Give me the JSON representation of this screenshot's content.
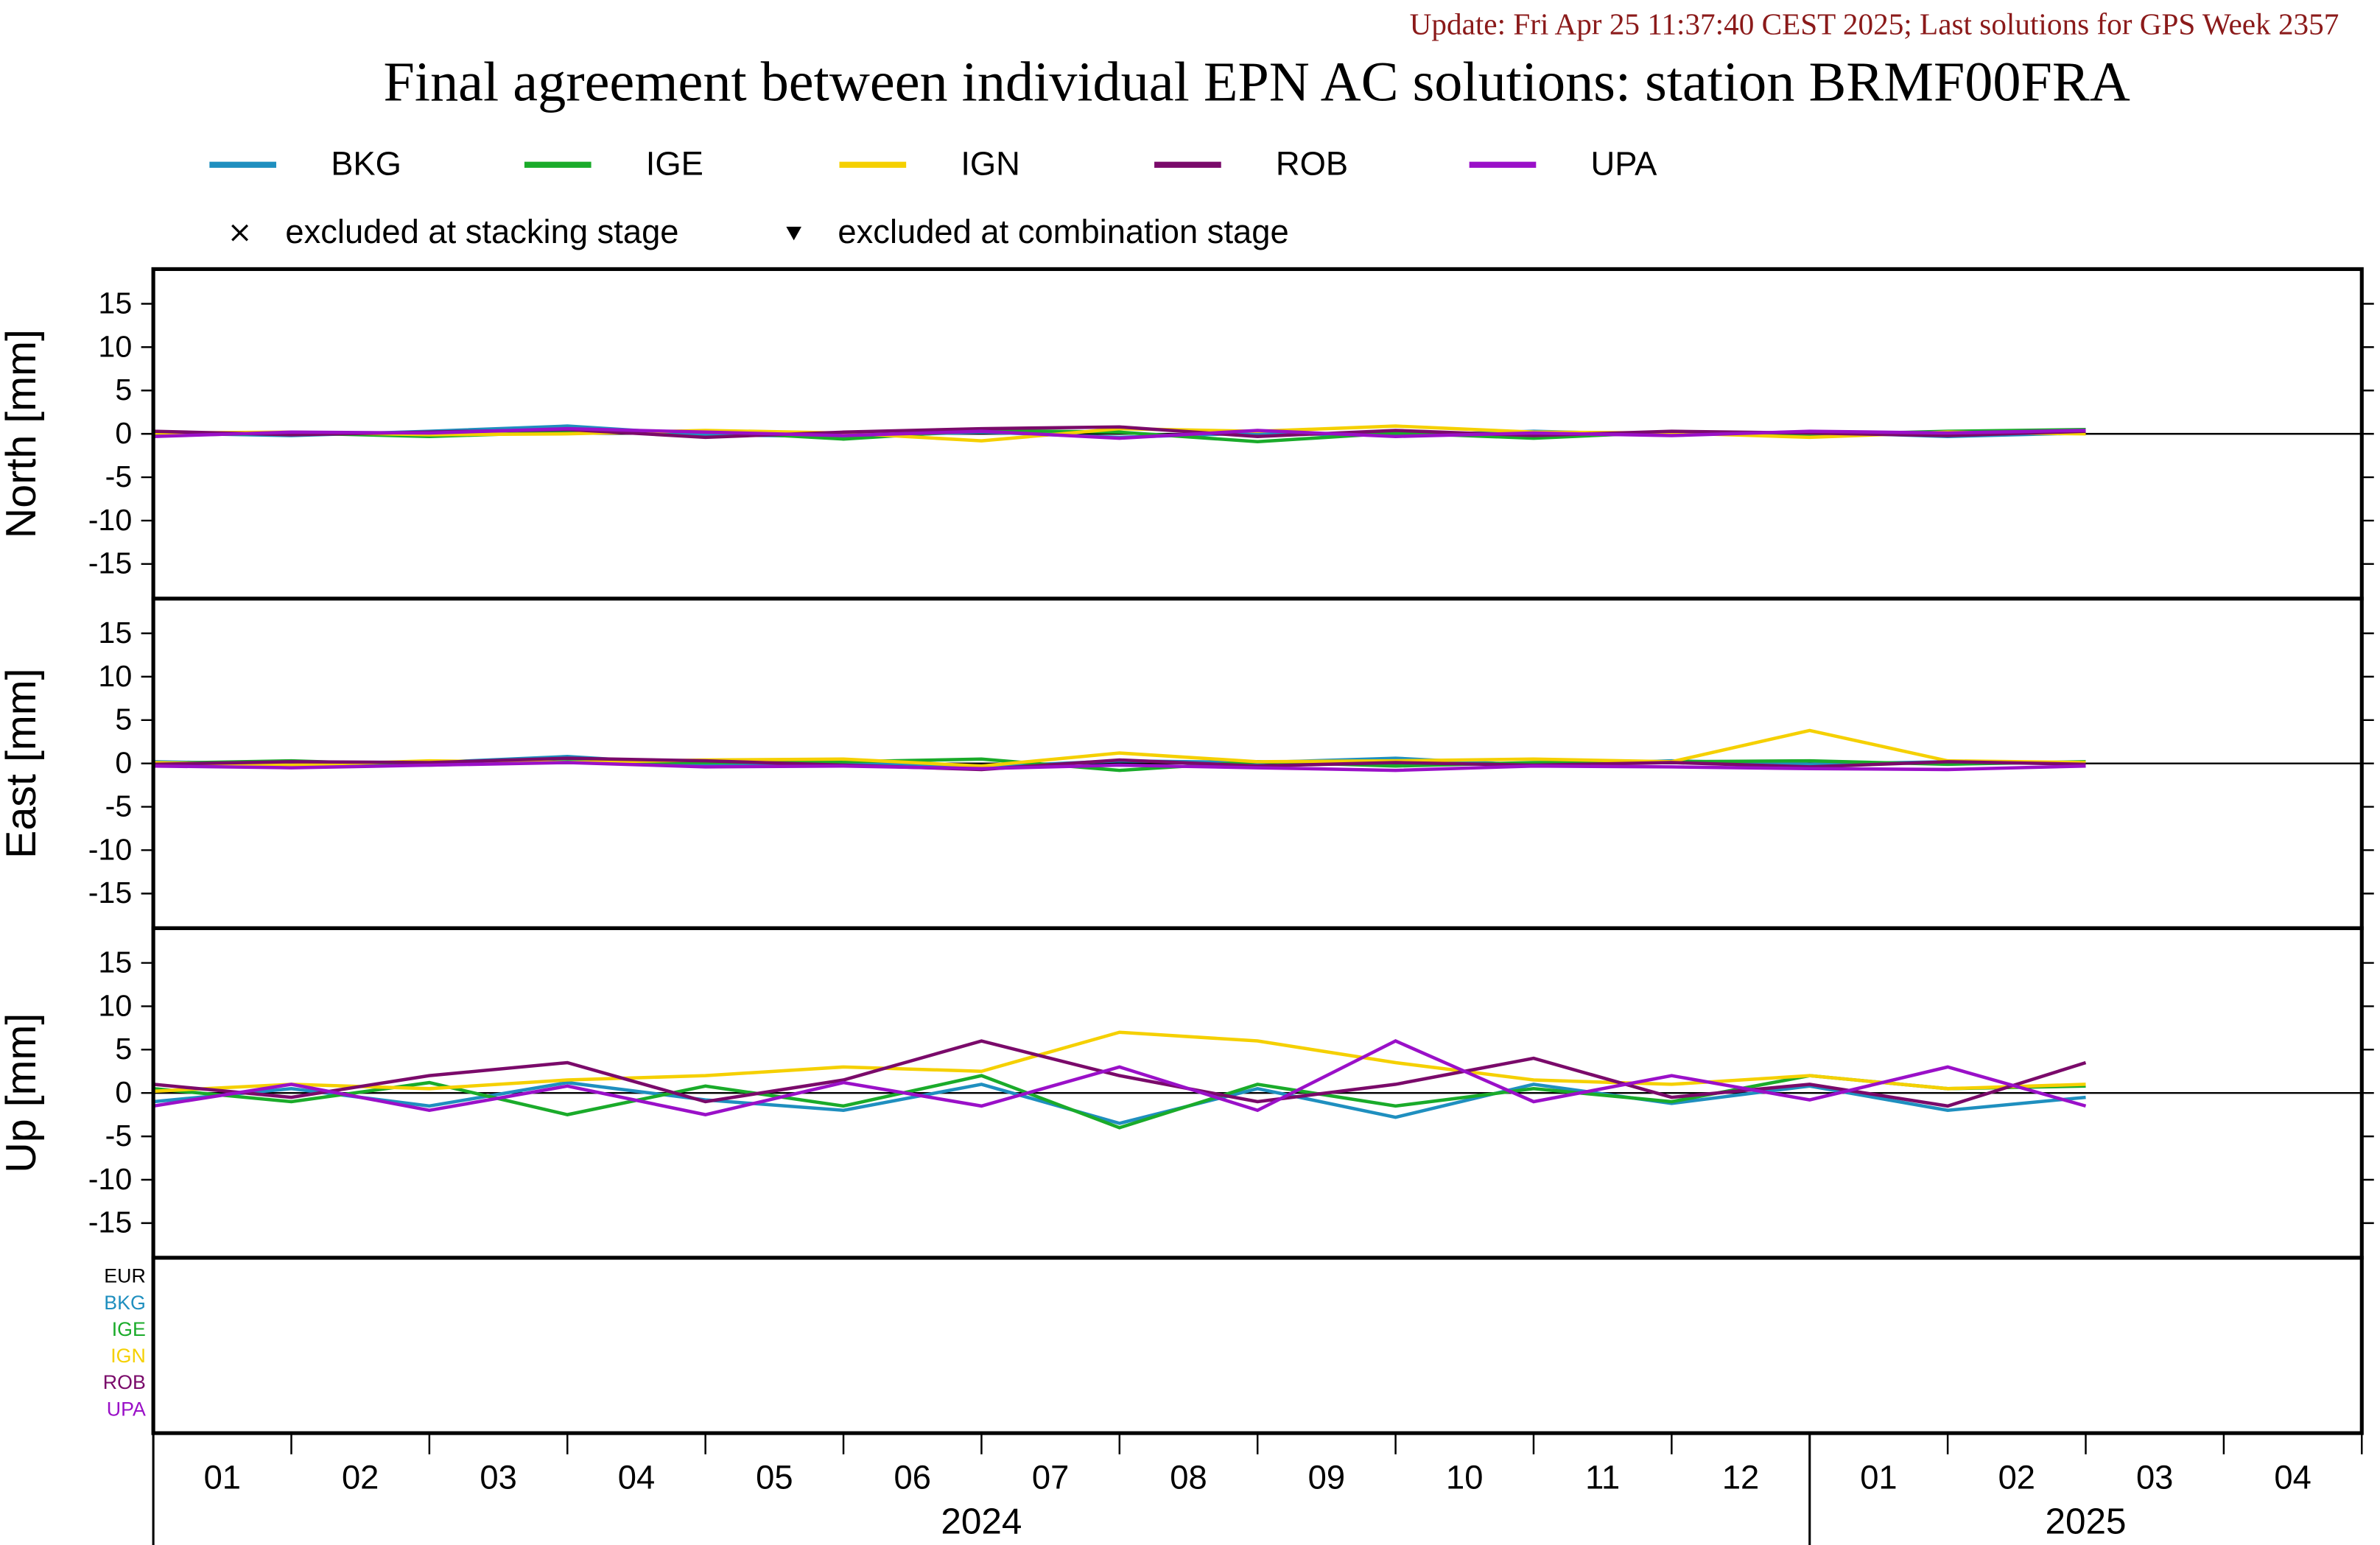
{
  "chart_data": {
    "type": "line",
    "update": "Update: Fri Apr 25 11:37:40 CEST 2025; Last solutions for GPS Week 2357",
    "title": "Final agreement between individual EPN AC solutions: station BRMF00FRA",
    "series": [
      {
        "name": "BKG",
        "color": "#1f8fbf"
      },
      {
        "name": "IGE",
        "color": "#1aab2a"
      },
      {
        "name": "IGN",
        "color": "#f5d000"
      },
      {
        "name": "ROB",
        "color": "#7a0a6a"
      },
      {
        "name": "UPA",
        "color": "#9a10c8"
      }
    ],
    "symbol_legend": [
      "excluded at stacking stage",
      "excluded at combination stage"
    ],
    "x": [
      "2024-01",
      "2024-02",
      "2024-03",
      "2024-04",
      "2024-05",
      "2024-06",
      "2024-07",
      "2024-08",
      "2024-09",
      "2024-10",
      "2024-11",
      "2024-12",
      "2025-01",
      "2025-02",
      "2025-03"
    ],
    "xlim": [
      "2024-01",
      "2025-05"
    ],
    "months": [
      "01",
      "02",
      "03",
      "04",
      "05",
      "06",
      "07",
      "08",
      "09",
      "10",
      "11",
      "12",
      "01",
      "02",
      "03",
      "04"
    ],
    "years": [
      "2024",
      "2025"
    ],
    "zero_line": 0,
    "panels": [
      {
        "ylabel": "North [mm]",
        "ylim": [
          -19,
          19
        ],
        "yticks": [
          -15,
          -10,
          -5,
          0,
          5,
          10,
          15
        ],
        "values": [
          [
            0.1,
            -0.2,
            0.3,
            0.9,
            -0.1,
            -0.3,
            0.2,
            -0.4,
            0.1,
            -0.2,
            0.3,
            -0.1,
            0.2,
            -0.3,
            0.1
          ],
          [
            -0.2,
            0.1,
            -0.3,
            0.2,
            0.3,
            -0.6,
            0.4,
            0.2,
            -0.9,
            0.1,
            -0.5,
            0.2,
            -0.1,
            0.3,
            0.5
          ],
          [
            0.1,
            0.2,
            -0.1,
            0.0,
            0.4,
            0.1,
            -0.8,
            0.6,
            0.3,
            0.9,
            0.2,
            0.1,
            -0.4,
            0.2,
            0.0
          ],
          [
            0.3,
            -0.1,
            0.2,
            0.5,
            -0.4,
            0.2,
            0.6,
            0.8,
            -0.3,
            0.4,
            -0.2,
            0.3,
            0.1,
            -0.2,
            0.3
          ],
          [
            -0.3,
            0.2,
            0.1,
            0.6,
            0.2,
            -0.2,
            0.3,
            -0.5,
            0.4,
            -0.3,
            0.1,
            -0.2,
            0.3,
            0.1,
            0.4
          ]
        ]
      },
      {
        "ylabel": "East [mm]",
        "ylim": [
          -19,
          19
        ],
        "yticks": [
          -15,
          -10,
          -5,
          0,
          5,
          10,
          15
        ],
        "values": [
          [
            0.2,
            -0.1,
            0.1,
            0.8,
            -0.2,
            0.1,
            -0.4,
            0.3,
            0.1,
            0.6,
            -0.2,
            0.3,
            -0.1,
            0.2,
            0.0
          ],
          [
            0.0,
            0.3,
            -0.2,
            0.2,
            0.1,
            0.2,
            0.5,
            -0.8,
            0.2,
            -0.3,
            0.1,
            0.2,
            0.3,
            -0.1,
            0.2
          ],
          [
            0.1,
            -0.2,
            0.3,
            0.1,
            0.4,
            0.5,
            -0.3,
            1.2,
            0.2,
            0.3,
            0.5,
            0.2,
            3.8,
            0.3,
            0.1
          ],
          [
            -0.1,
            0.2,
            0.1,
            0.6,
            0.3,
            -0.2,
            -0.7,
            0.4,
            -0.3,
            0.1,
            -0.2,
            0.1,
            -0.4,
            0.2,
            -0.1
          ],
          [
            -0.3,
            -0.5,
            -0.2,
            0.1,
            -0.4,
            -0.3,
            -0.6,
            -0.2,
            -0.5,
            -0.8,
            -0.3,
            -0.4,
            -0.6,
            -0.7,
            -0.3
          ]
        ]
      },
      {
        "ylabel": "Up [mm]",
        "ylim": [
          -19,
          19
        ],
        "yticks": [
          -15,
          -10,
          -5,
          0,
          5,
          10,
          15
        ],
        "values": [
          [
            -1,
            0.5,
            -1.5,
            1.2,
            -0.8,
            -2,
            1,
            -3.5,
            0.5,
            -2.8,
            1,
            -1.2,
            0.8,
            -2,
            -0.5
          ],
          [
            0.5,
            -1,
            1.2,
            -2.5,
            0.8,
            -1.5,
            2,
            -4,
            1,
            -1.5,
            0.5,
            -1,
            2,
            0.5,
            0.8
          ],
          [
            0.2,
            1,
            0.5,
            1.5,
            2,
            3,
            2.5,
            7,
            6,
            3.5,
            1.5,
            1,
            2,
            0.5,
            1
          ],
          [
            1,
            -0.5,
            2,
            3.5,
            -1,
            1.5,
            6,
            2,
            -1,
            1,
            4,
            -0.5,
            1,
            -1.5,
            3.5
          ],
          [
            -1.5,
            1,
            -2,
            0.8,
            -2.5,
            1.2,
            -1.5,
            3,
            -2,
            6,
            -1,
            2,
            -0.8,
            3,
            -1.5
          ]
        ]
      }
    ],
    "ac_labels": [
      {
        "label": "EUR",
        "color": "#000000"
      },
      {
        "label": "BKG",
        "color": "#1f8fbf"
      },
      {
        "label": "IGE",
        "color": "#1aab2a"
      },
      {
        "label": "IGN",
        "color": "#f5d000"
      },
      {
        "label": "ROB",
        "color": "#7a0a6a"
      },
      {
        "label": "UPA",
        "color": "#9a10c8"
      }
    ]
  }
}
